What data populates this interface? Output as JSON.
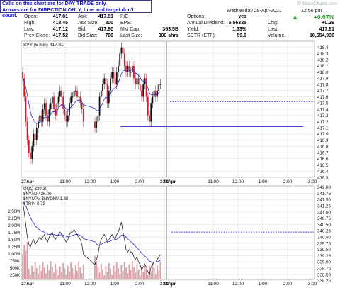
{
  "note": {
    "line1": "Calls on this chart are for DAY TRADE only.",
    "line2": "Arrows are for DIRECTION ONLY, time and target don't count."
  },
  "watermark": "© StockCharts.com",
  "header": {
    "date": "Wednesday  28-Apr-2021",
    "time": "12:56 pm"
  },
  "quote": {
    "open_label": "Open:",
    "open": "417.81",
    "high_label": "High:",
    "high": "418.45",
    "low_label": "Low:",
    "low": "417.12",
    "prev_label": "Prev Close:",
    "prev": "417.52",
    "ask_label": "Ask:",
    "ask": "417.81",
    "asksize_label": "Ask Size:",
    "asksize": "800",
    "bid_label": "Bid:",
    "bid": "417.80",
    "bidsize_label": "Bid Size:",
    "bidsize": "700",
    "pe_label": "P/E",
    "eps_label": "EPS:",
    "mktcap_label": "Mkt Cap:",
    "mktcap": "363.5B",
    "lastsize_label": "Last Size:",
    "lastsize": "300 shrs",
    "options_label": "Options:",
    "options": "yes",
    "div_label": "Annual Dividend:",
    "div": "5.56325",
    "yield_label": "Yield:",
    "yield": "1.33%",
    "sctr_label": "SCTR (ETF):",
    "sctr": "59.0",
    "pct": "+0.07%",
    "chg_label": "Chg:",
    "chg": "+0.29",
    "last_label": "Last:",
    "last": "417.81",
    "vol_label": "Volume:",
    "vol": "18,654,936"
  },
  "colors": {
    "up": "#111111",
    "down": "#d01b2f",
    "ma": "#2a2ad0",
    "hline": "#2a2ad0",
    "grid": "#dcdcdc"
  },
  "chart_data": [
    {
      "type": "candlestick",
      "title": "SPY (5 min) 417.81",
      "ylim": [
        416.3,
        418.5
      ],
      "yticks": [
        "418.4",
        "418.3",
        "418.2",
        "418.1",
        "418.0",
        "417.9",
        "417.8",
        "417.7",
        "417.6",
        "417.5",
        "417.4",
        "417.3",
        "417.2",
        "417.1",
        "417.0",
        "416.9",
        "416.8",
        "416.7",
        "416.6",
        "416.5",
        "416.4",
        "416.3"
      ],
      "xticks": [
        "27Apr",
        "11:00",
        "12:00",
        "1:00",
        "2:00",
        "3:00",
        "28Apr",
        "11:00",
        "12:00",
        "1:00",
        "2:00",
        "3:00"
      ],
      "hlines": [
        417.52,
        417.12
      ],
      "close": [
        417.9,
        417.6,
        417.2,
        416.9,
        416.7,
        416.6,
        416.8,
        417.0,
        416.9,
        417.1,
        417.2,
        417.3,
        417.2,
        417.4,
        417.5,
        417.3,
        417.2,
        417.4,
        417.5,
        417.6,
        417.4,
        417.3,
        417.5,
        417.6,
        417.7,
        417.6,
        417.4,
        417.3,
        417.2,
        417.3,
        417.5,
        417.6,
        417.6,
        417.7,
        417.7,
        417.6,
        417.6,
        417.5,
        417.4,
        417.2,
        417.1,
        417.2,
        417.3,
        417.6,
        417.7,
        417.8,
        417.9,
        417.8,
        417.5,
        417.7,
        417.9,
        418.0,
        417.9,
        417.8,
        418.0,
        418.1,
        418.3,
        418.4,
        418.3,
        418.1,
        418.0,
        418.1,
        418.0,
        418.0,
        418.1,
        417.9,
        417.8,
        417.9,
        417.8,
        417.7,
        417.6,
        417.8,
        417.9,
        417.6,
        417.3,
        417.2,
        417.5,
        417.6,
        417.7,
        417.6,
        417.7,
        417.8,
        417.8
      ]
    },
    {
      "type": "line",
      "title": "QQQ 339.30",
      "legend": [
        "$NYAD 426.00",
        "$NYUPV-$NYDNV 1.80",
        "$TRIN 0.73"
      ],
      "ylim": [
        338.3,
        342.05
      ],
      "yticks": [
        "342.00",
        "341.75",
        "341.50",
        "341.25",
        "341.00",
        "340.75",
        "340.50",
        "340.25",
        "340.00",
        "339.75",
        "339.50",
        "339.25",
        "339.00",
        "338.75",
        "338.50",
        "338.25"
      ],
      "volume_ticks": [
        "2.50M",
        "2.25M",
        "2.00M",
        "1.75M",
        "1.50M",
        "1.25M",
        "1.00M",
        "750K",
        "500K",
        "250K"
      ],
      "xticks": [
        "27Apr",
        "11:00",
        "12:00",
        "1:00",
        "2:00",
        "3:00",
        "28Apr",
        "11:00",
        "12:00",
        "1:00",
        "2:00",
        "3:00"
      ],
      "hline": 340.2,
      "close": [
        341.4,
        341.0,
        340.5,
        340.0,
        339.7,
        339.6,
        339.8,
        339.9,
        339.7,
        339.8,
        339.9,
        340.0,
        339.9,
        340.0,
        340.1,
        339.9,
        339.8,
        340.0,
        340.1,
        340.2,
        340.0,
        339.9,
        340.0,
        340.1,
        340.2,
        340.1,
        340.0,
        339.9,
        339.8,
        339.9,
        340.1,
        340.2,
        340.2,
        340.3,
        340.2,
        340.1,
        340.0,
        339.9,
        339.7,
        339.3,
        338.9,
        339.1,
        339.3,
        339.7,
        339.9,
        340.0,
        340.1,
        340.0,
        339.8,
        339.9,
        340.0,
        340.1,
        340.0,
        339.9,
        340.1,
        340.2,
        340.4,
        340.6,
        340.2,
        339.9,
        339.5,
        339.4,
        339.5,
        339.4,
        339.4,
        339.2,
        339.1,
        339.2,
        339.0,
        338.9,
        338.7,
        338.8,
        338.9,
        338.8,
        338.6,
        338.5,
        338.8,
        338.9,
        339.0,
        339.0,
        339.1,
        339.2,
        339.3
      ]
    }
  ]
}
